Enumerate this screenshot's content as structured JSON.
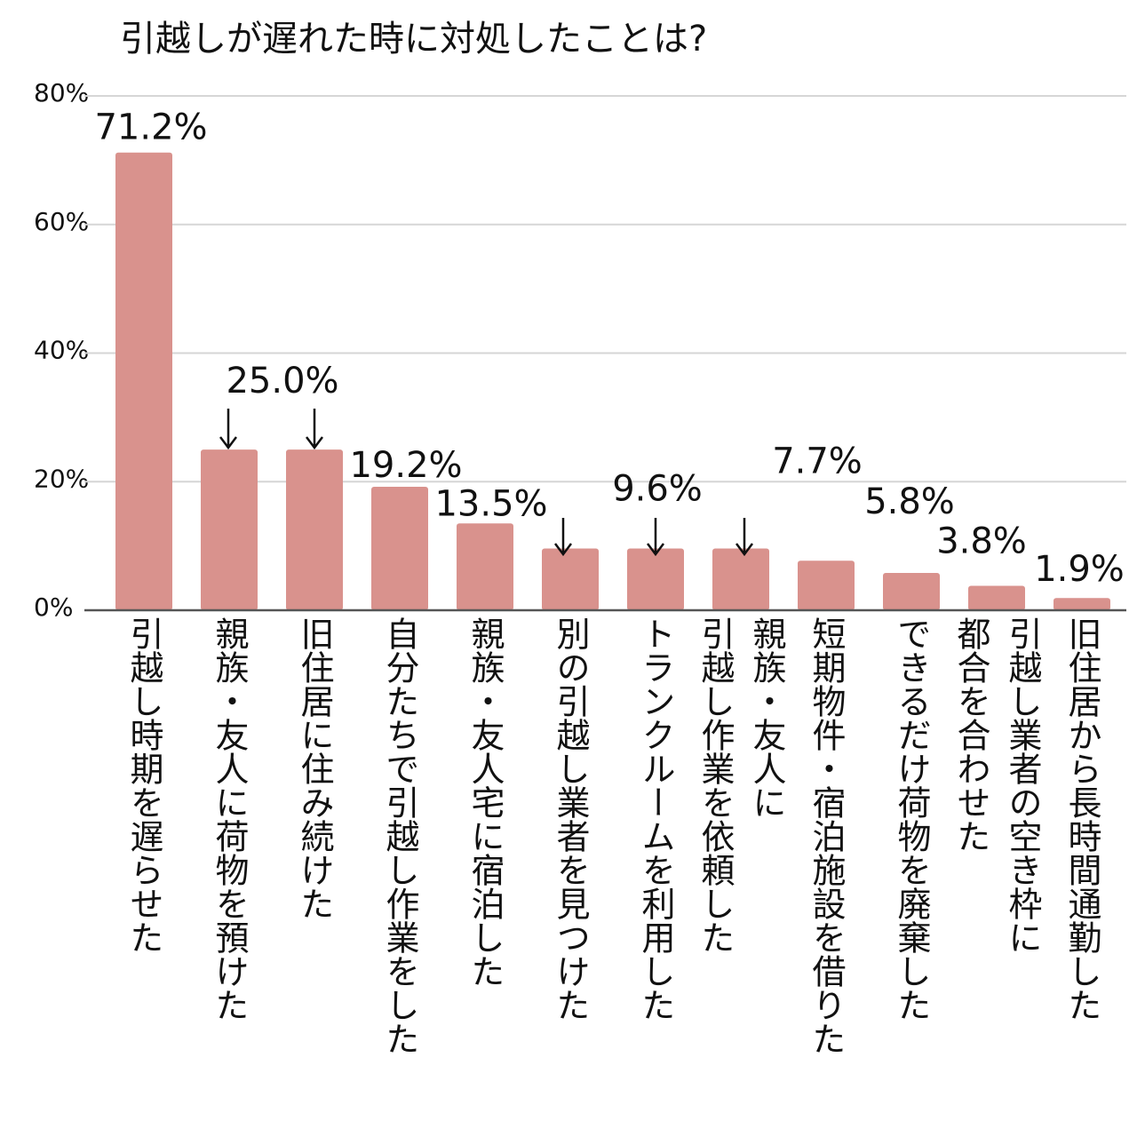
{
  "chart_data": {
    "type": "bar",
    "title": "引越しが遅れた時に対処したことは?",
    "categories": [
      "引越し時期を遅らせた",
      "親族・友人に荷物を預けた",
      "旧住居に住み続けた",
      "自分たちで引越し作業をした",
      "親族・友人宅に宿泊した",
      "別の引越し業者を見つけた",
      "トランクルームを利用した",
      "親族・友人に\n引越し作業を依頼した",
      "短期物件・宿泊施設を借りた",
      "できるだけ荷物を廃棄した",
      "引越し業者の空き枠に\n都合を合わせた",
      "旧住居から長時間通勤した"
    ],
    "values": [
      71.2,
      25.0,
      25.0,
      19.2,
      13.5,
      9.6,
      9.6,
      9.6,
      7.7,
      5.8,
      3.8,
      1.9
    ],
    "value_labels": [
      "71.2%",
      "25.0%",
      null,
      "19.2%",
      "13.5%",
      null,
      "9.6%",
      null,
      "7.7%",
      "5.8%",
      "3.8%",
      "1.9%"
    ],
    "color": "#d9928d",
    "ylim": [
      0,
      80
    ],
    "yticks": [
      {
        "value": 0,
        "label": "0%"
      },
      {
        "value": 20,
        "label": "20%"
      },
      {
        "value": 40,
        "label": "40%"
      },
      {
        "value": 60,
        "label": "60%"
      },
      {
        "value": 80,
        "label": "80%"
      }
    ],
    "grid": true
  }
}
